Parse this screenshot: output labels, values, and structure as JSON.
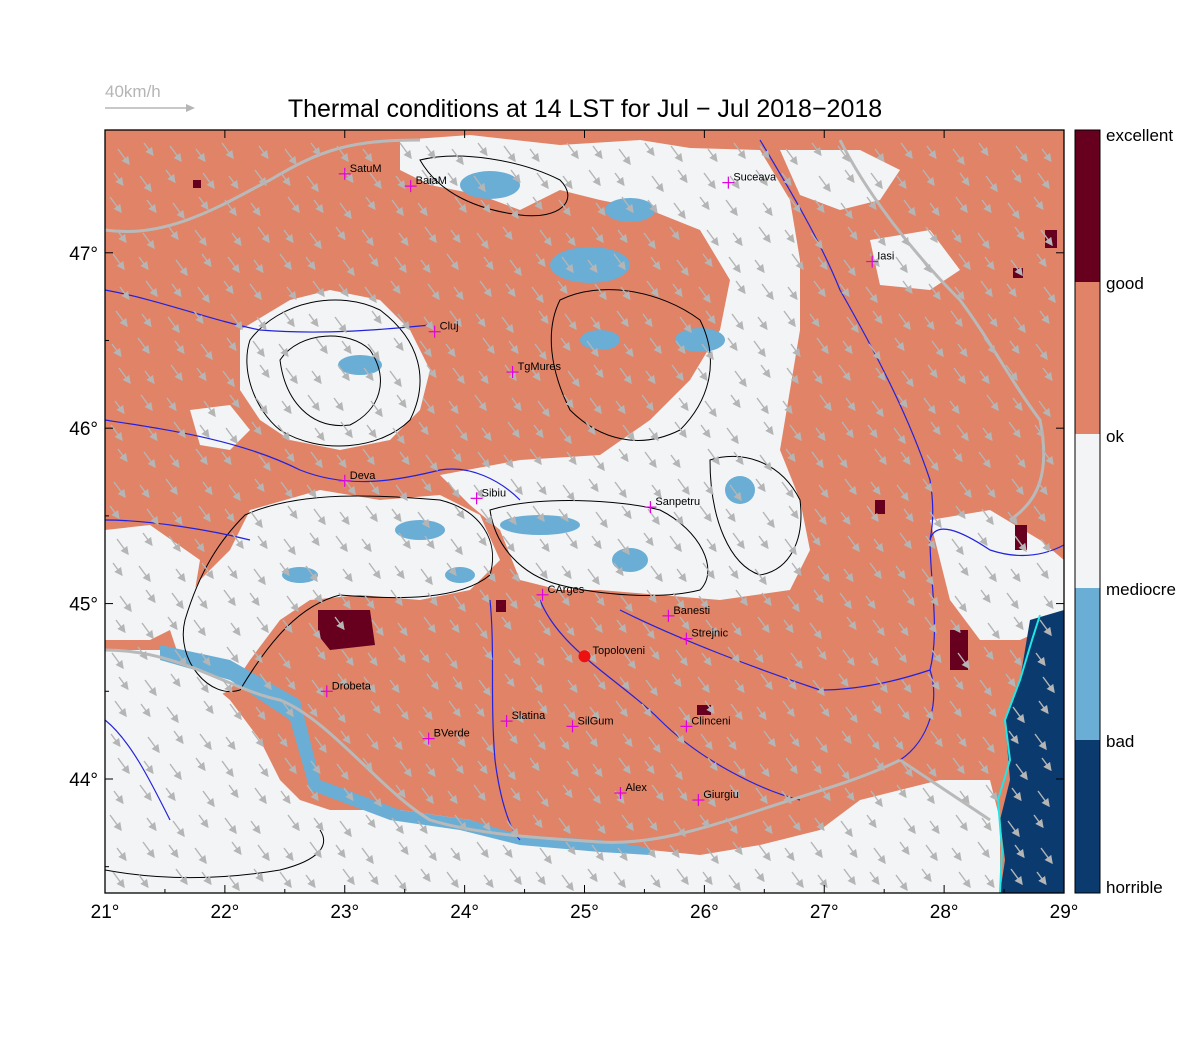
{
  "title": "Thermal conditions at 14 LST for Jul − Jul  2018−2018",
  "wind_scale": {
    "label": "40km/h",
    "color": "#b5b5b5"
  },
  "map": {
    "lon_range": [
      21,
      29
    ],
    "lat_range": [
      43.35,
      47.7
    ],
    "x_ticks": [
      "21°",
      "22°",
      "23°",
      "24°",
      "25°",
      "26°",
      "27°",
      "28°",
      "29°"
    ],
    "y_ticks": [
      "44°",
      "45°",
      "46°",
      "47°"
    ]
  },
  "cities": [
    {
      "name": "SatuM",
      "lon": 23.0,
      "lat": 47.45
    },
    {
      "name": "BaiaM",
      "lon": 23.55,
      "lat": 47.38
    },
    {
      "name": "Suceava",
      "lon": 26.2,
      "lat": 47.4
    },
    {
      "name": "Iasi",
      "lon": 27.4,
      "lat": 46.95
    },
    {
      "name": "Cluj",
      "lon": 23.75,
      "lat": 46.55
    },
    {
      "name": "TgMures",
      "lon": 24.4,
      "lat": 46.32
    },
    {
      "name": "Deva",
      "lon": 23.0,
      "lat": 45.7
    },
    {
      "name": "Sibiu",
      "lon": 24.1,
      "lat": 45.6
    },
    {
      "name": "Sanpetru",
      "lon": 25.55,
      "lat": 45.55
    },
    {
      "name": "CArges",
      "lon": 24.65,
      "lat": 45.05
    },
    {
      "name": "Banesti",
      "lon": 25.7,
      "lat": 44.93
    },
    {
      "name": "Strejnic",
      "lon": 25.85,
      "lat": 44.8
    },
    {
      "name": "Drobeta",
      "lon": 22.85,
      "lat": 44.5
    },
    {
      "name": "Slatina",
      "lon": 24.35,
      "lat": 44.33
    },
    {
      "name": "SilGum",
      "lon": 24.9,
      "lat": 44.3
    },
    {
      "name": "Clinceni",
      "lon": 25.85,
      "lat": 44.3
    },
    {
      "name": "BVerde",
      "lon": 23.7,
      "lat": 44.23
    },
    {
      "name": "Alex",
      "lon": 25.3,
      "lat": 43.92
    },
    {
      "name": "Giurgiu",
      "lon": 25.95,
      "lat": 43.88
    }
  ],
  "highlight": {
    "name": "Topoloveni",
    "lon": 25.0,
    "lat": 44.7
  },
  "legend": {
    "labels": [
      "excellent",
      "good",
      "ok",
      "mediocre",
      "bad",
      "horrible"
    ],
    "colors": {
      "excellent": "#67001f",
      "good": "#e08367",
      "ok": "#f2f4f6",
      "mediocre": "#6aaed6",
      "bad": "#0b3b6e"
    }
  },
  "colors": {
    "base": "#e08367",
    "river": "#2222dd",
    "border": "#b9b9b9",
    "city_marker": "#e000e0",
    "highlight_marker": "#ee1111",
    "contour": "#000000",
    "coast": "#22e5e5"
  }
}
